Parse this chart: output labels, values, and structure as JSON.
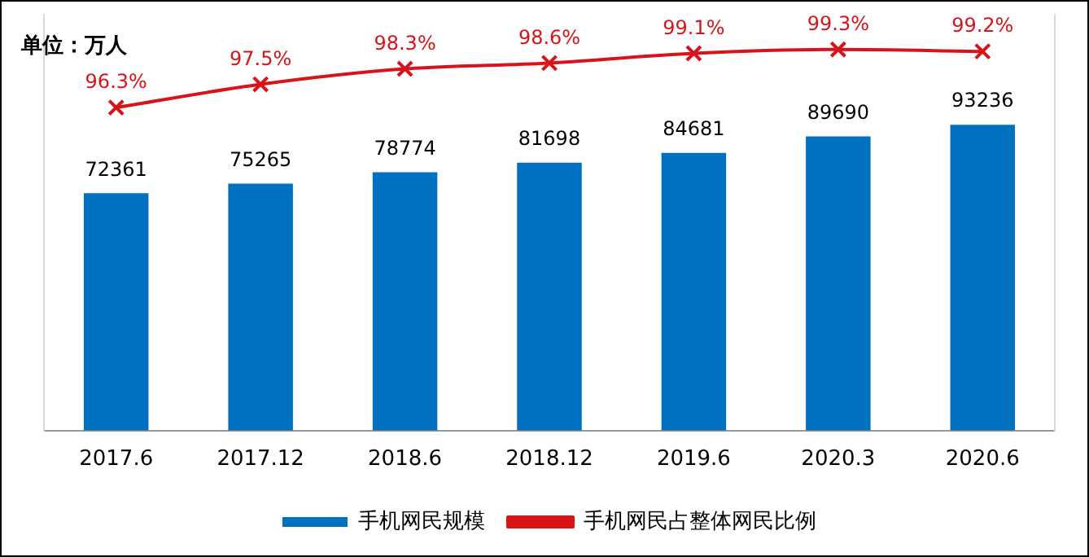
{
  "chart_data": {
    "type": "bar",
    "categories": [
      "2017.6",
      "2017.12",
      "2018.6",
      "2018.12",
      "2019.6",
      "2020.3",
      "2020.6"
    ],
    "annotations": [
      "单位：万人"
    ],
    "series": [
      {
        "name": "手机网民规模",
        "color": "#0070c0",
        "values": [
          72361,
          75265,
          78774,
          81698,
          84681,
          89690,
          93236
        ],
        "value_labels": [
          "72361",
          "75265",
          "78774",
          "81698",
          "84681",
          "89690",
          "93236"
        ]
      },
      {
        "name": "手机网民占整体网民比例",
        "type": "line",
        "axis": "y2",
        "color": "#d7141a",
        "marker": "cross",
        "values": [
          96.3,
          97.5,
          98.3,
          98.6,
          99.1,
          99.3,
          99.2
        ],
        "value_labels": [
          "96.3%",
          "97.5%",
          "98.3%",
          "98.6%",
          "99.1%",
          "99.3%",
          "99.2%"
        ]
      }
    ],
    "ylim": [
      0,
      126800
    ],
    "y2lim": [
      79.6,
      101.1
    ],
    "legend": "bottom",
    "grid": false,
    "tick_labels": "x"
  }
}
